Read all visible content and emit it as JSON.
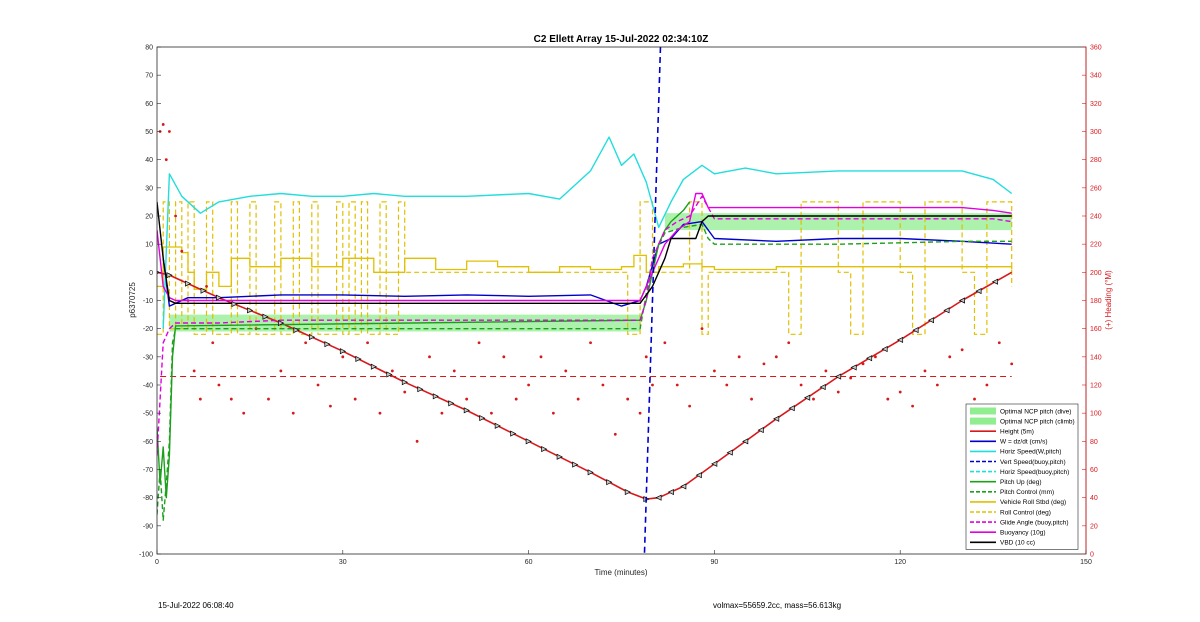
{
  "chart_data": {
    "type": "line",
    "title": "C2 Ellett Array 15-Jul-2022 02:34:10Z",
    "xlabel": "Time (minutes)",
    "ylabel": "p6370725",
    "y2label": "(+) Heading (°M)",
    "xlim": [
      0,
      150
    ],
    "ylim": [
      -100,
      80
    ],
    "y2lim": [
      0,
      360
    ],
    "xticks": [
      "0",
      "30",
      "60",
      "90",
      "120",
      "150"
    ],
    "yticks": [
      "80",
      "70",
      "60",
      "50",
      "40",
      "30",
      "20",
      "10",
      "0",
      "-10",
      "-20",
      "-30",
      "-40",
      "-50",
      "-60",
      "-70",
      "-80",
      "-90",
      "-100"
    ],
    "y2ticks": [
      "360",
      "340",
      "320",
      "300",
      "280",
      "260",
      "240",
      "220",
      "200",
      "180",
      "160",
      "140",
      "120",
      "100",
      "80",
      "60",
      "40",
      "20",
      "0"
    ],
    "legend_position": "bottom-right",
    "legend": [
      {
        "label": "Optimal NCP pitch (dive)",
        "color": "#90ee90",
        "style": "patch"
      },
      {
        "label": "Optimal NCP pitch (climb)",
        "color": "#90ee90",
        "style": "patch"
      },
      {
        "label": "Height (5m)",
        "color": "#d7191c",
        "style": "solid"
      },
      {
        "label": "W = dz/dt (cm/s)",
        "color": "#0000cd",
        "style": "solid"
      },
      {
        "label": "Horiz Speed(W,pitch)",
        "color": "#22dddd",
        "style": "solid"
      },
      {
        "label": "Vert Speed(buoy,pitch)",
        "color": "#0000cd",
        "style": "dashed"
      },
      {
        "label": "Horiz Speed(buoy,pitch)",
        "color": "#22dddd",
        "style": "dashed"
      },
      {
        "label": "Pitch Up (deg)",
        "color": "#1ca01c",
        "style": "solid"
      },
      {
        "label": "Pitch Control (mm)",
        "color": "#1ca01c",
        "style": "dashed"
      },
      {
        "label": "Vehicle Roll Stbd (deg)",
        "color": "#e0c000",
        "style": "solid"
      },
      {
        "label": "Roll Control (deg)",
        "color": "#e0c000",
        "style": "dashed"
      },
      {
        "label": "Glide Angle (buoy,pitch)",
        "color": "#e000e0",
        "style": "dashed"
      },
      {
        "label": "Buoyancy (10g)",
        "color": "#e000e0",
        "style": "solid"
      },
      {
        "label": "VBD (10 cc)",
        "color": "#000000",
        "style": "solid"
      }
    ],
    "series": [
      {
        "name": "Height (5m)",
        "color": "#d7191c",
        "x": [
          0,
          2,
          5,
          10,
          20,
          30,
          40,
          50,
          60,
          70,
          76,
          79,
          81,
          85,
          90,
          100,
          110,
          120,
          130,
          138
        ],
        "y": [
          0,
          -1,
          -4,
          -9,
          -18,
          -28,
          -39,
          -49,
          -60,
          -71,
          -78,
          -80.5,
          -80,
          -76,
          -68,
          -52,
          -37,
          -24,
          -10,
          0
        ]
      },
      {
        "name": "W = dz/dt (cm/s)",
        "color": "#0000cd",
        "x": [
          1,
          2,
          5,
          10,
          20,
          30,
          40,
          50,
          60,
          70,
          75,
          78,
          79,
          81,
          83,
          85,
          88,
          90,
          100,
          110,
          120,
          130,
          138
        ],
        "y": [
          5,
          -12,
          -9,
          -9,
          -8,
          -8,
          -8.5,
          -8,
          -8.5,
          -8,
          -12,
          -10,
          -5,
          10,
          12,
          17,
          18,
          12,
          11,
          12,
          12,
          11,
          10
        ]
      },
      {
        "name": "Horiz Speed(W,pitch)",
        "color": "#22dddd",
        "x": [
          1,
          2,
          4,
          7,
          10,
          15,
          20,
          25,
          30,
          35,
          40,
          50,
          60,
          65,
          70,
          73,
          75,
          77,
          79,
          81,
          83,
          85,
          88,
          90,
          95,
          100,
          110,
          120,
          130,
          135,
          138
        ],
        "y": [
          -20,
          35,
          27,
          21,
          25,
          27,
          28,
          27,
          27,
          28,
          27,
          27,
          28,
          26,
          36,
          48,
          38,
          42,
          32,
          16,
          25,
          33,
          38,
          35,
          37,
          35,
          36,
          36,
          36,
          33,
          28
        ]
      },
      {
        "name": "Pitch Up (deg)",
        "color": "#1ca01c",
        "x": [
          0,
          0.5,
          1,
          1.5,
          2,
          2.5,
          3,
          78,
          79,
          81,
          82,
          83,
          84,
          85,
          86
        ],
        "y": [
          -55,
          -75,
          -62,
          -80,
          -65,
          -30,
          -19,
          -17,
          -10,
          10,
          15,
          18,
          20,
          22,
          25
        ]
      },
      {
        "name": "Pitch Control (mm)",
        "color": "#1ca01c",
        "dash": "5,3",
        "x": [
          0,
          0.5,
          1,
          1.5,
          2,
          2.5,
          3,
          78,
          80,
          82,
          85,
          88,
          89,
          90,
          100,
          110,
          120,
          130,
          138
        ],
        "y": [
          -86,
          -70,
          -88,
          -75,
          -60,
          -25,
          -20,
          -20,
          5,
          14,
          16,
          17,
          12,
          10,
          10,
          10,
          10.5,
          11,
          11
        ]
      },
      {
        "name": "Buoyancy (10g)",
        "color": "#e000e0",
        "x": [
          0,
          1,
          2,
          3,
          78,
          80,
          82,
          84,
          86,
          87,
          88,
          89,
          90,
          100,
          110,
          120,
          130,
          135,
          138
        ],
        "y": [
          15,
          -5,
          -9,
          -10,
          -10,
          0,
          10,
          15,
          18,
          28,
          28,
          23,
          23,
          23,
          23,
          23,
          23,
          22,
          21
        ]
      },
      {
        "name": "Glide Angle (buoy,pitch)",
        "color": "#e000e0",
        "dash": "5,3",
        "x": [
          0,
          1,
          2,
          3,
          10,
          20,
          30,
          40,
          50,
          60,
          70,
          78,
          79,
          80,
          82,
          84,
          86,
          88,
          90,
          100,
          110,
          120,
          130,
          135,
          138
        ],
        "y": [
          -65,
          -25,
          -20,
          -18,
          -18,
          -17,
          -17,
          -17,
          -17,
          -17,
          -17,
          -17,
          -10,
          5,
          15,
          18,
          20,
          27,
          19,
          19,
          19,
          19,
          19,
          19,
          18
        ]
      },
      {
        "name": "VBD (10 cc)",
        "color": "#000000",
        "x": [
          0,
          1,
          2,
          3,
          78,
          80,
          82,
          83,
          84,
          86,
          87,
          88,
          89,
          90,
          100,
          110,
          120,
          130,
          138
        ],
        "y": [
          25,
          5,
          -10,
          -11,
          -11,
          -5,
          5,
          12,
          12,
          12,
          12,
          18,
          20,
          20,
          20,
          20,
          20,
          20,
          20
        ]
      }
    ],
    "roll_control_deg": {
      "color": "#e0c000",
      "x": [
        0,
        1,
        2,
        3,
        4,
        5,
        6,
        8,
        9,
        12,
        13,
        15,
        16,
        19,
        20,
        22,
        23,
        25,
        26,
        29,
        30,
        31,
        32,
        33,
        34,
        36,
        37,
        39,
        40,
        75,
        76,
        78,
        80,
        85,
        86,
        88,
        89,
        100,
        102,
        104,
        110,
        112,
        114,
        120,
        122,
        124,
        130,
        132,
        134,
        138
      ],
      "y": [
        -22,
        25,
        -20,
        25,
        -20,
        25,
        -22,
        25,
        -22,
        25,
        -22,
        25,
        -22,
        25,
        -22,
        25,
        -22,
        25,
        -22,
        25,
        -22,
        25,
        -22,
        25,
        -22,
        25,
        -22,
        25,
        0,
        0,
        -22,
        25,
        0,
        0,
        25,
        -22,
        0,
        0,
        -22,
        25,
        0,
        -22,
        25,
        0,
        -22,
        25,
        0,
        -22,
        25,
        -5
      ]
    },
    "vehicle_roll_stbd_deg": {
      "color": "#e0c000",
      "x": [
        0,
        1,
        2,
        4,
        5,
        6,
        8,
        10,
        12,
        15,
        20,
        25,
        30,
        35,
        40,
        45,
        50,
        55,
        60,
        65,
        70,
        75,
        77,
        79,
        81,
        85,
        88,
        90,
        100,
        105,
        110,
        115,
        120,
        125,
        130,
        135,
        138
      ],
      "y": [
        -5,
        9,
        9,
        7,
        0,
        -6,
        0,
        -5,
        5,
        2,
        5,
        2,
        5,
        0,
        5,
        1,
        4,
        2,
        0,
        2,
        1,
        2,
        6,
        0,
        2,
        3,
        2,
        1,
        2,
        2,
        2,
        2,
        2,
        2,
        2,
        2,
        1
      ]
    },
    "heading_deg_M": {
      "color": "#d7191c",
      "mean": 126,
      "x": [
        0.5,
        1,
        1.5,
        2,
        3,
        4,
        5,
        6,
        7,
        8,
        9,
        10,
        12,
        14,
        16,
        18,
        20,
        22,
        24,
        26,
        28,
        30,
        32,
        34,
        36,
        38,
        40,
        42,
        44,
        46,
        48,
        50,
        52,
        54,
        56,
        58,
        60,
        62,
        64,
        66,
        68,
        70,
        72,
        74,
        76,
        78,
        79,
        80,
        82,
        84,
        86,
        88,
        90,
        92,
        94,
        96,
        98,
        100,
        102,
        104,
        106,
        108,
        110,
        112,
        114,
        116,
        118,
        120,
        122,
        124,
        126,
        128,
        130,
        132,
        134,
        136,
        138
      ],
      "y": [
        300,
        305,
        280,
        300,
        240,
        215,
        180,
        130,
        110,
        190,
        150,
        120,
        110,
        100,
        160,
        110,
        130,
        100,
        150,
        120,
        105,
        140,
        110,
        150,
        100,
        130,
        115,
        80,
        140,
        100,
        130,
        110,
        150,
        100,
        140,
        110,
        120,
        140,
        100,
        130,
        110,
        150,
        120,
        85,
        110,
        100,
        140,
        120,
        150,
        120,
        105,
        160,
        130,
        120,
        140,
        110,
        135,
        140,
        150,
        120,
        110,
        130,
        115,
        125,
        135,
        140,
        110,
        115,
        105,
        130,
        120,
        140,
        145,
        110,
        120,
        150,
        135
      ]
    },
    "optimal_ncp_dive_band": {
      "x": [
        2,
        78
      ],
      "y": [
        -21,
        -15
      ]
    },
    "optimal_ncp_climb_band": {
      "x": [
        82,
        138
      ],
      "y": [
        15,
        21
      ]
    },
    "vertical_marker_x": 80
  },
  "footer": {
    "timestamp": "15-Jul-2022 06:08:40",
    "mass_info": "volmax=55659.2cc, mass=56.613kg"
  }
}
